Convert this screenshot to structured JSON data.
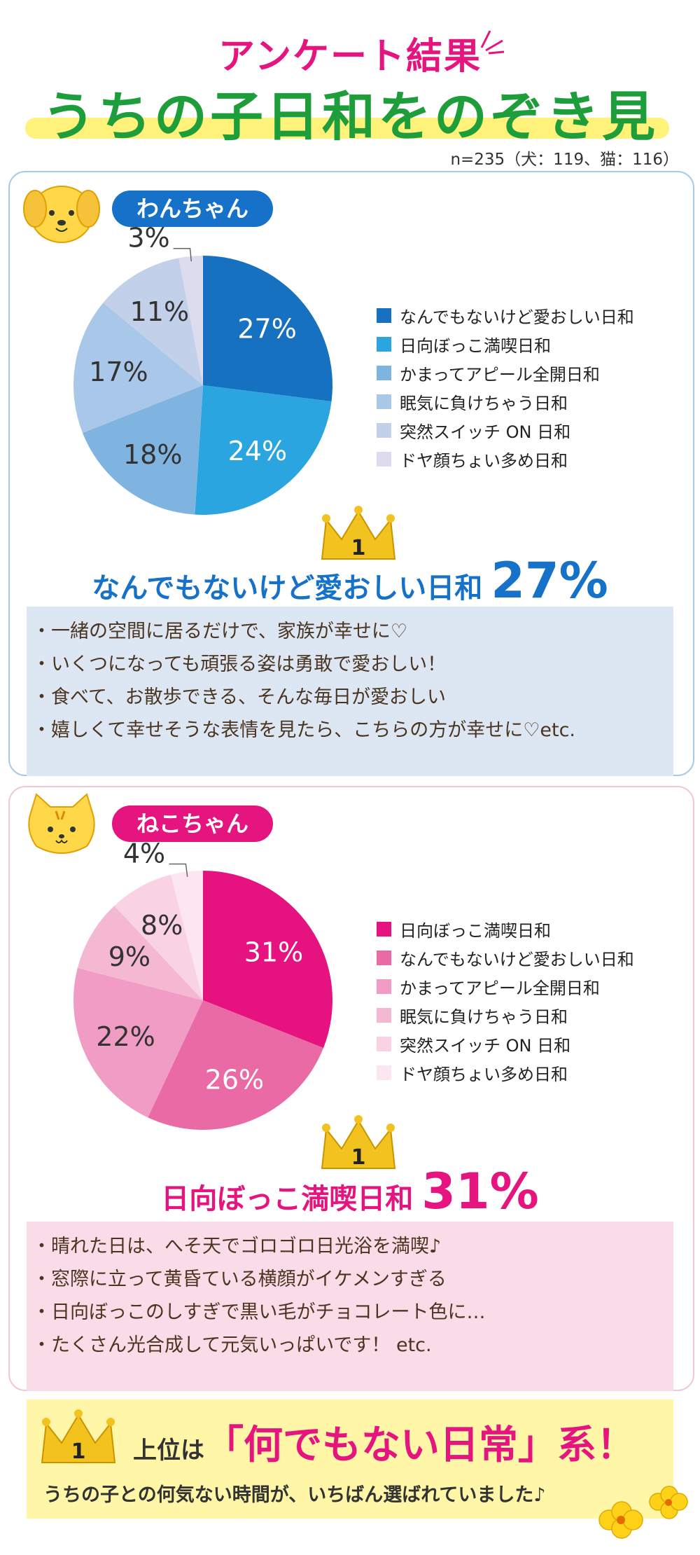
{
  "header": {
    "title": "アンケート結果",
    "subtitle": "うちの子日和をのぞき見",
    "sample": "n=235（犬：119、猫：116）"
  },
  "dog": {
    "label": "わんちゃん",
    "winner_label": "なんでもないけど愛おしい日和",
    "winner_value": "27%",
    "rank_badge": "1",
    "quotes": [
      "・一緒の空間に居るだけで、家族が幸せに♡",
      "・いくつになっても頑張る姿は勇敢で愛おしい！",
      "・食べて、お散歩できる、そんな毎日が愛おしい",
      "・嬉しくて幸せそうな表情を見たら、こちらの方が幸せに♡etc."
    ]
  },
  "cat": {
    "label": "ねこちゃん",
    "winner_label": "日向ぼっこ満喫日和",
    "winner_value": "31%",
    "rank_badge": "1",
    "quotes": [
      "・晴れた日は、へそ天でゴロゴロ日光浴を満喫♪",
      "・窓際に立って黄昏ている横顔がイケメンすぎる",
      "・日向ぼっこのしすぎで黒い毛がチョコレート色に…",
      "・たくさん光合成して元気いっぱいです！ etc."
    ]
  },
  "summary": {
    "line1_a": "上位は",
    "line1_b": "「何でもない日常」系！",
    "line2": "うちの子との何気ない時間が、いちばん選ばれていました♪",
    "rank_badge": "1"
  },
  "chart_data": [
    {
      "type": "pie",
      "categories": [
        "なんでもないけど愛おしい日和",
        "日向ぼっこ満喫日和",
        "かまってアピール全開日和",
        "眠気に負けちゃう日和",
        "突然スイッチ ON 日和",
        "ドヤ顔ちょい多め日和"
      ],
      "values": [
        27,
        24,
        18,
        17,
        11,
        3
      ],
      "labels": [
        "27%",
        "24%",
        "18%",
        "17%",
        "11%",
        "3%"
      ],
      "colors": [
        "#1672c0",
        "#2aa5e0",
        "#7fb3e0",
        "#a9c7e8",
        "#c3d0ea",
        "#dcdcee"
      ],
      "legend": "right"
    },
    {
      "type": "pie",
      "categories": [
        "日向ぼっこ満喫日和",
        "なんでもないけど愛おしい日和",
        "かまってアピール全開日和",
        "眠気に負けちゃう日和",
        "突然スイッチ ON 日和",
        "ドヤ顔ちょい多め日和"
      ],
      "values": [
        31,
        26,
        22,
        9,
        8,
        4
      ],
      "labels": [
        "31%",
        "26%",
        "22%",
        "9%",
        "8%",
        "4%"
      ],
      "colors": [
        "#e5127f",
        "#ea6aa5",
        "#f09cc4",
        "#f5b8d3",
        "#f9d2e3",
        "#fce7f0"
      ],
      "legend": "right"
    }
  ]
}
